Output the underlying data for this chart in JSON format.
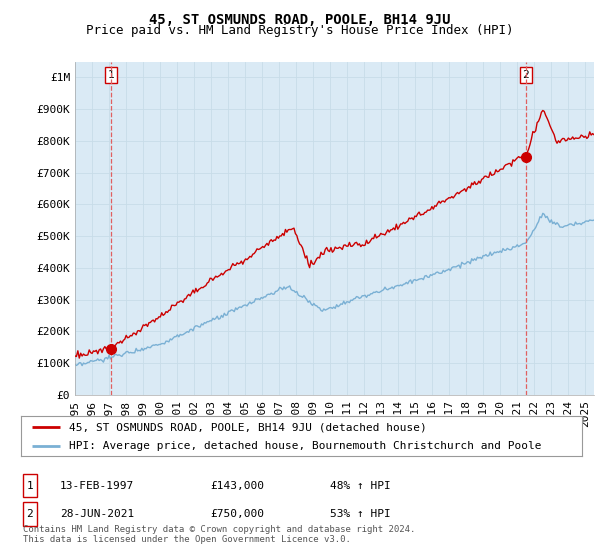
{
  "title": "45, ST OSMUNDS ROAD, POOLE, BH14 9JU",
  "subtitle": "Price paid vs. HM Land Registry's House Price Index (HPI)",
  "ylabel_ticks": [
    "£0",
    "£100K",
    "£200K",
    "£300K",
    "£400K",
    "£500K",
    "£600K",
    "£700K",
    "£800K",
    "£900K",
    "£1M"
  ],
  "ytick_values": [
    0,
    100000,
    200000,
    300000,
    400000,
    500000,
    600000,
    700000,
    800000,
    900000,
    1000000
  ],
  "ylim": [
    0,
    1050000
  ],
  "xlim_start": 1995.0,
  "xlim_end": 2025.5,
  "sale1_x": 1997.11,
  "sale1_y": 143000,
  "sale1_label": "1",
  "sale2_x": 2021.49,
  "sale2_y": 750000,
  "sale2_label": "2",
  "hpi_color": "#7ab0d4",
  "property_color": "#cc0000",
  "marker_color": "#cc0000",
  "vline_color": "#e06060",
  "grid_color": "#c8dce8",
  "chart_bg_color": "#daeaf5",
  "background_color": "#ffffff",
  "legend_line1": "45, ST OSMUNDS ROAD, POOLE, BH14 9JU (detached house)",
  "legend_line2": "HPI: Average price, detached house, Bournemouth Christchurch and Poole",
  "table_row1_num": "1",
  "table_row1_date": "13-FEB-1997",
  "table_row1_price": "£143,000",
  "table_row1_hpi": "48% ↑ HPI",
  "table_row2_num": "2",
  "table_row2_date": "28-JUN-2021",
  "table_row2_price": "£750,000",
  "table_row2_hpi": "53% ↑ HPI",
  "footer": "Contains HM Land Registry data © Crown copyright and database right 2024.\nThis data is licensed under the Open Government Licence v3.0.",
  "title_fontsize": 10,
  "subtitle_fontsize": 9,
  "tick_fontsize": 8,
  "legend_fontsize": 8,
  "table_fontsize": 8,
  "footer_fontsize": 6.5
}
